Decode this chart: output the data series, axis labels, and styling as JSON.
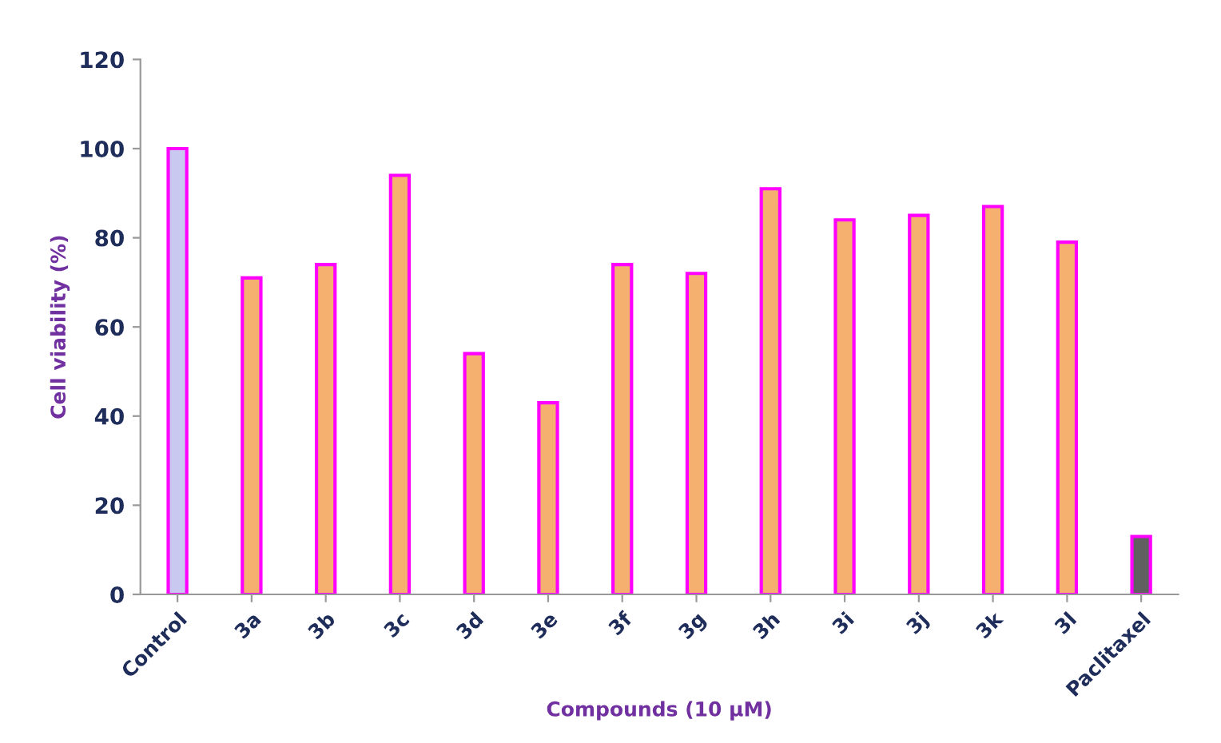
{
  "chart_data": {
    "type": "bar",
    "xlabel": "Compounds (10 µM)",
    "ylabel": "Cell viability (%)",
    "categories": [
      "Control",
      "3a",
      "3b",
      "3c",
      "3d",
      "3e",
      "3f",
      "3g",
      "3h",
      "3i",
      "3j",
      "3k",
      "3l",
      "Paclitaxel"
    ],
    "values": [
      100,
      71,
      74,
      94,
      54,
      43,
      74,
      72,
      91,
      84,
      85,
      87,
      79,
      13
    ],
    "colors": [
      "#c8c8f0",
      "#f5b070",
      "#f5b070",
      "#f5b070",
      "#f5b070",
      "#f5b070",
      "#f5b070",
      "#f5b070",
      "#f5b070",
      "#f5b070",
      "#f5b070",
      "#f5b070",
      "#f5b070",
      "#606060"
    ],
    "ylim": [
      0,
      120
    ],
    "yticks": [
      0,
      20,
      40,
      60,
      80,
      100,
      120
    ],
    "grid": false
  }
}
